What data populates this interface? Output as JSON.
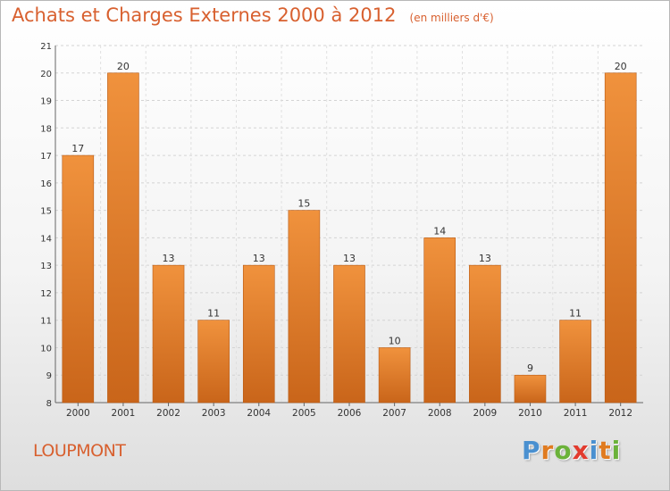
{
  "chart_data": {
    "type": "bar",
    "title": "Achats et Charges Externes 2000 à 2012",
    "subtitle": "(en milliers d'€)",
    "categories": [
      "2000",
      "2001",
      "2002",
      "2003",
      "2004",
      "2005",
      "2006",
      "2007",
      "2008",
      "2009",
      "2010",
      "2011",
      "2012"
    ],
    "values": [
      17,
      20,
      13,
      11,
      13,
      15,
      13,
      10,
      14,
      13,
      9,
      11,
      20
    ],
    "ylim": [
      8,
      21
    ],
    "yticks": [
      8,
      9,
      10,
      11,
      12,
      13,
      14,
      15,
      16,
      17,
      18,
      19,
      20,
      21
    ],
    "xlabel": "",
    "ylabel": "",
    "grid": true,
    "legend": "none",
    "bar_color": "#f0923d",
    "bar_color_dark": "#c9651a"
  },
  "footer": {
    "commune": "LOUPMONT",
    "logo_letters": [
      {
        "char": "P",
        "color": "#4a90d0"
      },
      {
        "char": "r",
        "color": "#e07b20"
      },
      {
        "char": "o",
        "color": "#6bb23a"
      },
      {
        "char": "x",
        "color": "#e23b2e"
      },
      {
        "char": "i",
        "color": "#4a90d0"
      },
      {
        "char": "t",
        "color": "#e07b20"
      },
      {
        "char": "i",
        "color": "#6bb23a"
      }
    ]
  }
}
